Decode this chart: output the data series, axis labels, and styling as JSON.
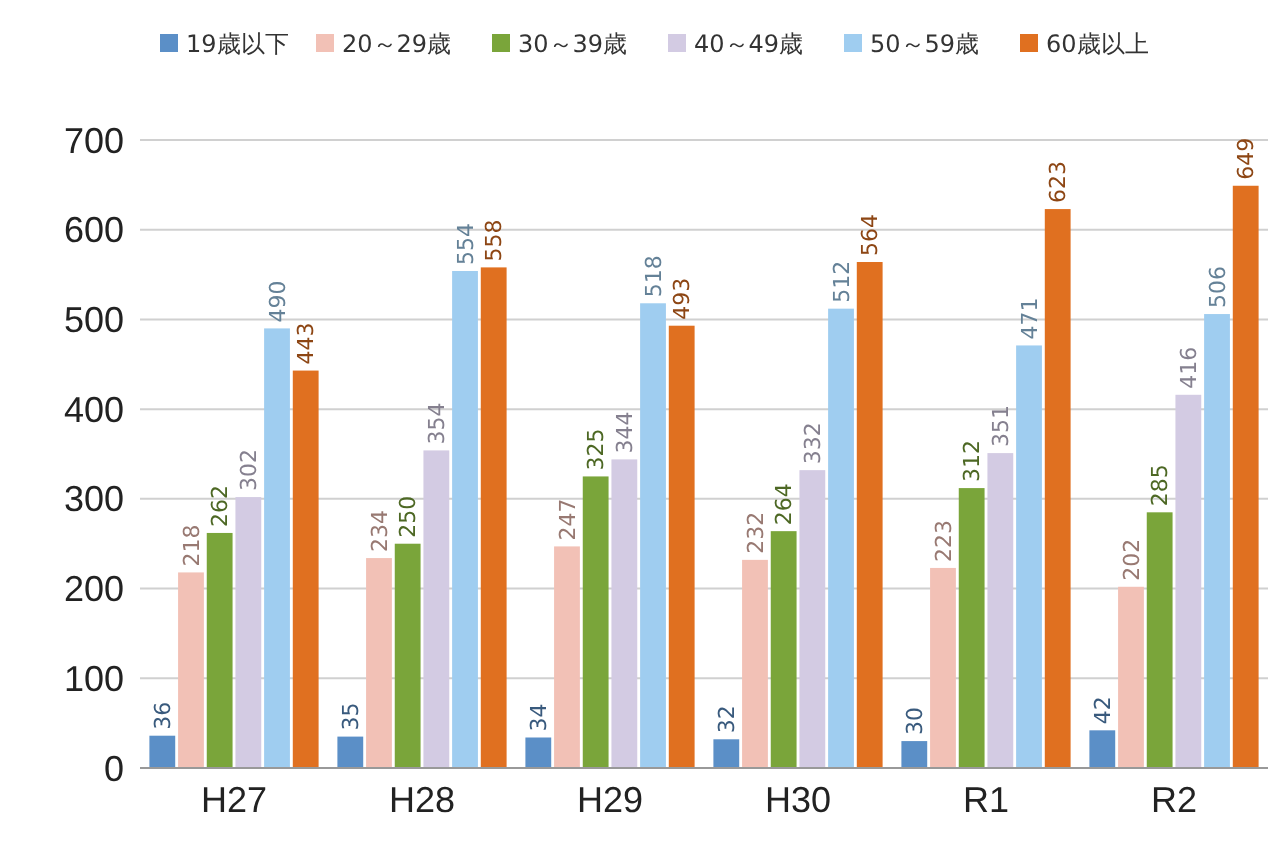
{
  "chart_data": {
    "type": "bar",
    "categories": [
      "H27",
      "H28",
      "H29",
      "H30",
      "R1",
      "R2"
    ],
    "series": [
      {
        "name": "19歳以下",
        "color": "#5b8fc7",
        "values": [
          36,
          35,
          34,
          32,
          30,
          42
        ]
      },
      {
        "name": "20～29歳",
        "color": "#f2c1b6",
        "values": [
          218,
          234,
          247,
          232,
          223,
          202
        ]
      },
      {
        "name": "30～39歳",
        "color": "#7aa53a",
        "values": [
          262,
          250,
          325,
          264,
          312,
          285
        ]
      },
      {
        "name": "40～49歳",
        "color": "#d3cbe3",
        "values": [
          302,
          354,
          344,
          332,
          351,
          416
        ]
      },
      {
        "name": "50～59歳",
        "color": "#9fcdf0",
        "values": [
          490,
          554,
          518,
          512,
          471,
          506
        ]
      },
      {
        "name": "60歳以上",
        "color": "#e07020",
        "values": [
          443,
          558,
          493,
          564,
          623,
          649
        ]
      }
    ],
    "ylim": [
      0,
      700
    ],
    "yticks": [
      0,
      100,
      200,
      300,
      400,
      500,
      600,
      700
    ],
    "grid": "y",
    "legend": "top",
    "data_labels": true
  }
}
